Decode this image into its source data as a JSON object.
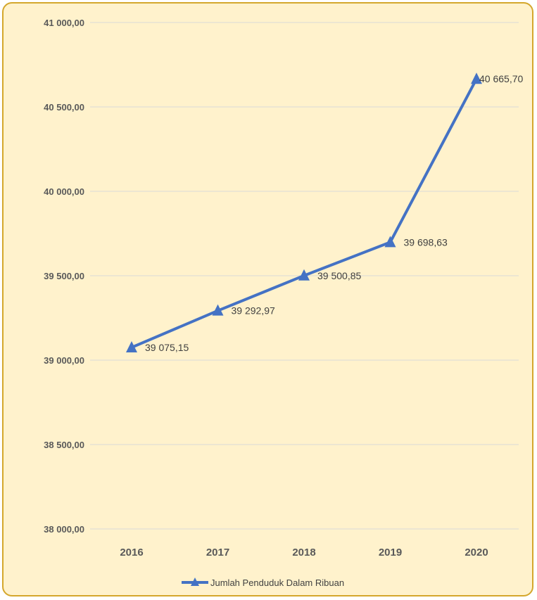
{
  "chart_data": {
    "type": "line",
    "categories": [
      "2016",
      "2017",
      "2018",
      "2019",
      "2020"
    ],
    "series": [
      {
        "name": "Jumlah Penduduk Dalam Ribuan",
        "values": [
          39075.15,
          39292.97,
          39500.85,
          39698.63,
          40665.7
        ],
        "labels": [
          "39 075,15",
          "39 292,97",
          "39 500,85",
          "39 698,63",
          "40 665,70"
        ],
        "color": "#4472c4",
        "marker": "triangle"
      }
    ],
    "ylim": [
      38000,
      41000
    ],
    "yticks": [
      38000,
      38500,
      39000,
      39500,
      40000,
      40500,
      41000
    ],
    "ytick_labels": [
      "38 000,00",
      "38 500,00",
      "39 000,00",
      "39 500,00",
      "40 000,00",
      "40 500,00",
      "41 000,00"
    ],
    "grid": true,
    "legend": "bottom-center",
    "background": "#fff2cc",
    "border_color": "#d4a72c"
  }
}
